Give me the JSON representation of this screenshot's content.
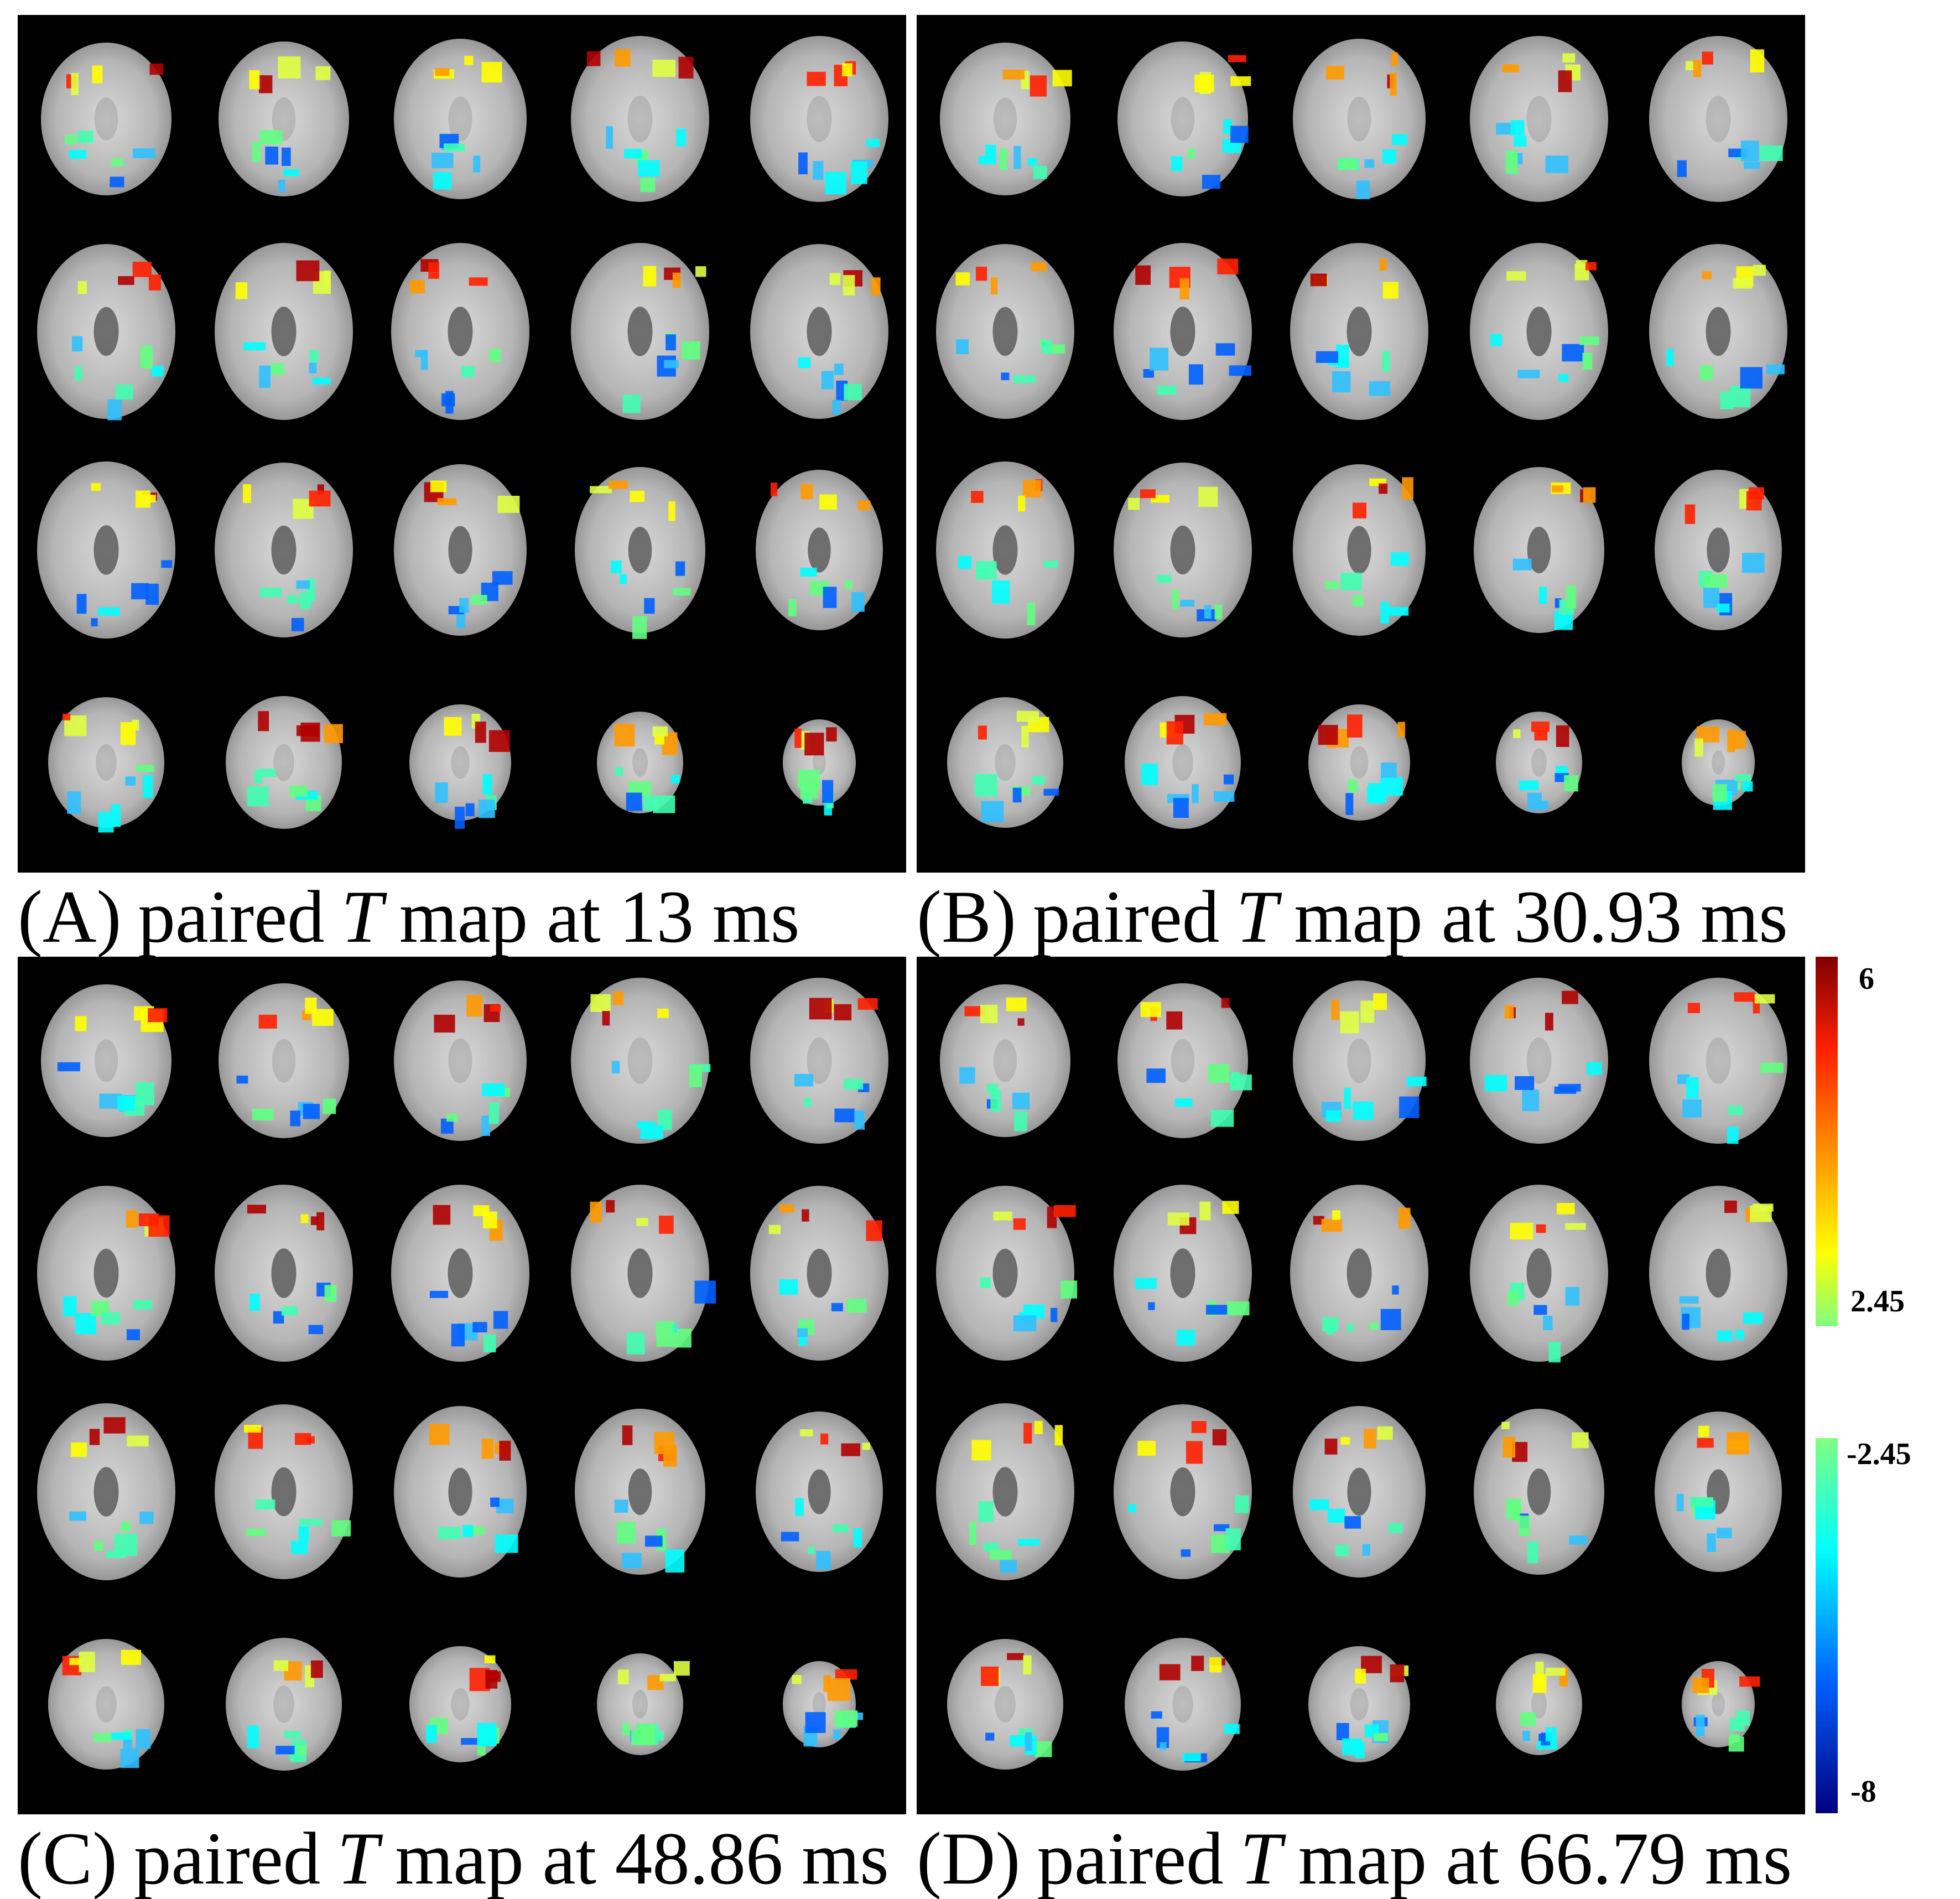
{
  "panels": [
    {
      "label": "(A)",
      "caption_pre": "paired",
      "caption_var": "T",
      "caption_post": "map at 13 ms"
    },
    {
      "label": "(B)",
      "caption_pre": "paired",
      "caption_var": "T",
      "caption_post": "map at 30.93 ms"
    },
    {
      "label": "(C)",
      "caption_pre": "paired",
      "caption_var": "T",
      "caption_post": "map at 48.86 ms"
    },
    {
      "label": "(D)",
      "caption_pre": "paired",
      "caption_var": "T",
      "caption_post": "map at 66.79 ms"
    }
  ],
  "colorbar": {
    "positive_max": 6,
    "positive_min": 2.45,
    "negative_max": -2.45,
    "negative_min": -8
  }
}
